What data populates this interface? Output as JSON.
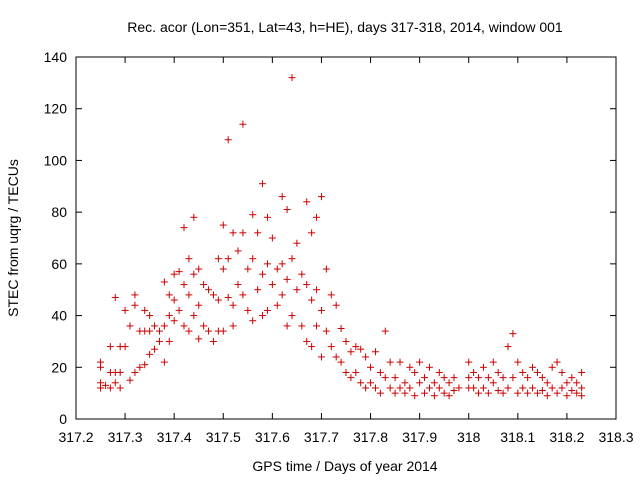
{
  "chart_data": {
    "type": "scatter",
    "title": "Rec. acor (Lon=351, Lat=43, h=HE), days 317-318, 2014, window 001",
    "xlabel": "GPS time / Days of year 2014",
    "ylabel": "STEC from uqrg / TECUs",
    "xlim": [
      317.2,
      318.3
    ],
    "ylim": [
      0,
      140
    ],
    "x_ticks": [
      "317.2",
      "317.3",
      "317.4",
      "317.5",
      "317.6",
      "317.7",
      "317.8",
      "317.9",
      "318",
      "318.1",
      "318.2",
      "318.3"
    ],
    "y_ticks": [
      "0",
      "20",
      "40",
      "60",
      "80",
      "100",
      "120",
      "140"
    ],
    "marker": "+",
    "series": [
      {
        "name": "STEC",
        "color": "#cc0000",
        "points": [
          [
            317.25,
            22
          ],
          [
            317.25,
            20
          ],
          [
            317.25,
            14
          ],
          [
            317.25,
            12
          ],
          [
            317.26,
            13
          ],
          [
            317.27,
            28
          ],
          [
            317.27,
            18
          ],
          [
            317.27,
            12
          ],
          [
            317.28,
            47
          ],
          [
            317.28,
            18
          ],
          [
            317.28,
            14
          ],
          [
            317.29,
            28
          ],
          [
            317.29,
            18
          ],
          [
            317.29,
            12
          ],
          [
            317.3,
            28
          ],
          [
            317.3,
            42
          ],
          [
            317.31,
            36
          ],
          [
            317.31,
            15
          ],
          [
            317.32,
            48
          ],
          [
            317.32,
            44
          ],
          [
            317.32,
            18
          ],
          [
            317.33,
            34
          ],
          [
            317.33,
            20
          ],
          [
            317.34,
            42
          ],
          [
            317.34,
            34
          ],
          [
            317.34,
            21
          ],
          [
            317.35,
            40
          ],
          [
            317.35,
            34
          ],
          [
            317.35,
            25
          ],
          [
            317.36,
            36
          ],
          [
            317.36,
            27
          ],
          [
            317.37,
            34
          ],
          [
            317.37,
            30
          ],
          [
            317.38,
            53
          ],
          [
            317.38,
            36
          ],
          [
            317.38,
            22
          ],
          [
            317.39,
            48
          ],
          [
            317.39,
            40
          ],
          [
            317.39,
            30
          ],
          [
            317.4,
            56
          ],
          [
            317.4,
            46
          ],
          [
            317.4,
            38
          ],
          [
            317.41,
            57
          ],
          [
            317.41,
            42
          ],
          [
            317.42,
            74
          ],
          [
            317.42,
            52
          ],
          [
            317.42,
            36
          ],
          [
            317.43,
            62
          ],
          [
            317.43,
            48
          ],
          [
            317.43,
            34
          ],
          [
            317.44,
            78
          ],
          [
            317.44,
            56
          ],
          [
            317.44,
            40
          ],
          [
            317.45,
            58
          ],
          [
            317.45,
            44
          ],
          [
            317.45,
            31
          ],
          [
            317.46,
            52
          ],
          [
            317.46,
            36
          ],
          [
            317.47,
            50
          ],
          [
            317.47,
            34
          ],
          [
            317.48,
            48
          ],
          [
            317.48,
            30
          ],
          [
            317.49,
            62
          ],
          [
            317.49,
            46
          ],
          [
            317.49,
            34
          ],
          [
            317.5,
            75
          ],
          [
            317.5,
            58
          ],
          [
            317.5,
            34
          ],
          [
            317.51,
            108
          ],
          [
            317.51,
            62
          ],
          [
            317.51,
            47
          ],
          [
            317.52,
            72
          ],
          [
            317.52,
            44
          ],
          [
            317.52,
            36
          ],
          [
            317.53,
            65
          ],
          [
            317.53,
            52
          ],
          [
            317.54,
            114
          ],
          [
            317.54,
            72
          ],
          [
            317.54,
            48
          ],
          [
            317.55,
            58
          ],
          [
            317.55,
            42
          ],
          [
            317.56,
            79
          ],
          [
            317.56,
            62
          ],
          [
            317.56,
            38
          ],
          [
            317.57,
            72
          ],
          [
            317.57,
            50
          ],
          [
            317.58,
            91
          ],
          [
            317.58,
            56
          ],
          [
            317.58,
            40
          ],
          [
            317.59,
            78
          ],
          [
            317.59,
            60
          ],
          [
            317.59,
            42
          ],
          [
            317.6,
            70
          ],
          [
            317.6,
            52
          ],
          [
            317.61,
            58
          ],
          [
            317.61,
            44
          ],
          [
            317.62,
            86
          ],
          [
            317.62,
            60
          ],
          [
            317.62,
            48
          ],
          [
            317.63,
            81
          ],
          [
            317.63,
            54
          ],
          [
            317.63,
            36
          ],
          [
            317.64,
            132
          ],
          [
            317.64,
            62
          ],
          [
            317.64,
            40
          ],
          [
            317.65,
            68
          ],
          [
            317.65,
            50
          ],
          [
            317.66,
            56
          ],
          [
            317.66,
            36
          ],
          [
            317.67,
            84
          ],
          [
            317.67,
            52
          ],
          [
            317.67,
            30
          ],
          [
            317.68,
            72
          ],
          [
            317.68,
            46
          ],
          [
            317.68,
            28
          ],
          [
            317.69,
            78
          ],
          [
            317.69,
            50
          ],
          [
            317.69,
            36
          ],
          [
            317.7,
            86
          ],
          [
            317.7,
            42
          ],
          [
            317.7,
            24
          ],
          [
            317.71,
            58
          ],
          [
            317.71,
            34
          ],
          [
            317.72,
            48
          ],
          [
            317.72,
            28
          ],
          [
            317.73,
            44
          ],
          [
            317.73,
            24
          ],
          [
            317.74,
            35
          ],
          [
            317.74,
            22
          ],
          [
            317.75,
            30
          ],
          [
            317.75,
            18
          ],
          [
            317.76,
            26
          ],
          [
            317.76,
            16
          ],
          [
            317.77,
            28
          ],
          [
            317.77,
            18
          ],
          [
            317.78,
            27
          ],
          [
            317.78,
            14
          ],
          [
            317.79,
            24
          ],
          [
            317.79,
            12
          ],
          [
            317.8,
            20
          ],
          [
            317.8,
            14
          ],
          [
            317.81,
            26
          ],
          [
            317.81,
            12
          ],
          [
            317.82,
            18
          ],
          [
            317.82,
            10
          ],
          [
            317.83,
            34
          ],
          [
            317.83,
            16
          ],
          [
            317.84,
            22
          ],
          [
            317.84,
            12
          ],
          [
            317.85,
            16
          ],
          [
            317.85,
            10
          ],
          [
            317.86,
            22
          ],
          [
            317.86,
            12
          ],
          [
            317.87,
            14
          ],
          [
            317.87,
            10
          ],
          [
            317.88,
            20
          ],
          [
            317.88,
            12
          ],
          [
            317.89,
            18
          ],
          [
            317.89,
            9
          ],
          [
            317.9,
            22
          ],
          [
            317.9,
            14
          ],
          [
            317.91,
            16
          ],
          [
            317.91,
            10
          ],
          [
            317.92,
            20
          ],
          [
            317.92,
            12
          ],
          [
            317.93,
            14
          ],
          [
            317.93,
            9
          ],
          [
            317.94,
            18
          ],
          [
            317.94,
            12
          ],
          [
            317.95,
            16
          ],
          [
            317.95,
            10
          ],
          [
            317.96,
            14
          ],
          [
            317.96,
            9
          ],
          [
            317.97,
            16
          ],
          [
            317.97,
            11
          ],
          [
            317.98,
            12
          ],
          [
            318.0,
            22
          ],
          [
            318.0,
            16
          ],
          [
            318.0,
            12
          ],
          [
            318.01,
            18
          ],
          [
            318.01,
            12
          ],
          [
            318.02,
            16
          ],
          [
            318.02,
            10
          ],
          [
            318.03,
            20
          ],
          [
            318.03,
            12
          ],
          [
            318.04,
            16
          ],
          [
            318.04,
            10
          ],
          [
            318.05,
            22
          ],
          [
            318.05,
            14
          ],
          [
            318.06,
            18
          ],
          [
            318.06,
            11
          ],
          [
            318.07,
            16
          ],
          [
            318.07,
            10
          ],
          [
            318.08,
            28
          ],
          [
            318.08,
            12
          ],
          [
            318.09,
            33
          ],
          [
            318.09,
            16
          ],
          [
            318.1,
            22
          ],
          [
            318.1,
            10
          ],
          [
            318.11,
            18
          ],
          [
            318.11,
            12
          ],
          [
            318.12,
            16
          ],
          [
            318.12,
            10
          ],
          [
            318.13,
            20
          ],
          [
            318.13,
            12
          ],
          [
            318.14,
            18
          ],
          [
            318.14,
            10
          ],
          [
            318.15,
            16
          ],
          [
            318.15,
            11
          ],
          [
            318.16,
            14
          ],
          [
            318.16,
            9
          ],
          [
            318.17,
            20
          ],
          [
            318.17,
            12
          ],
          [
            318.18,
            22
          ],
          [
            318.18,
            10
          ],
          [
            318.19,
            18
          ],
          [
            318.19,
            12
          ],
          [
            318.2,
            14
          ],
          [
            318.2,
            9
          ],
          [
            318.21,
            16
          ],
          [
            318.21,
            11
          ],
          [
            318.22,
            14
          ],
          [
            318.22,
            10
          ],
          [
            318.23,
            18
          ],
          [
            318.23,
            12
          ],
          [
            318.23,
            9
          ]
        ]
      }
    ]
  }
}
